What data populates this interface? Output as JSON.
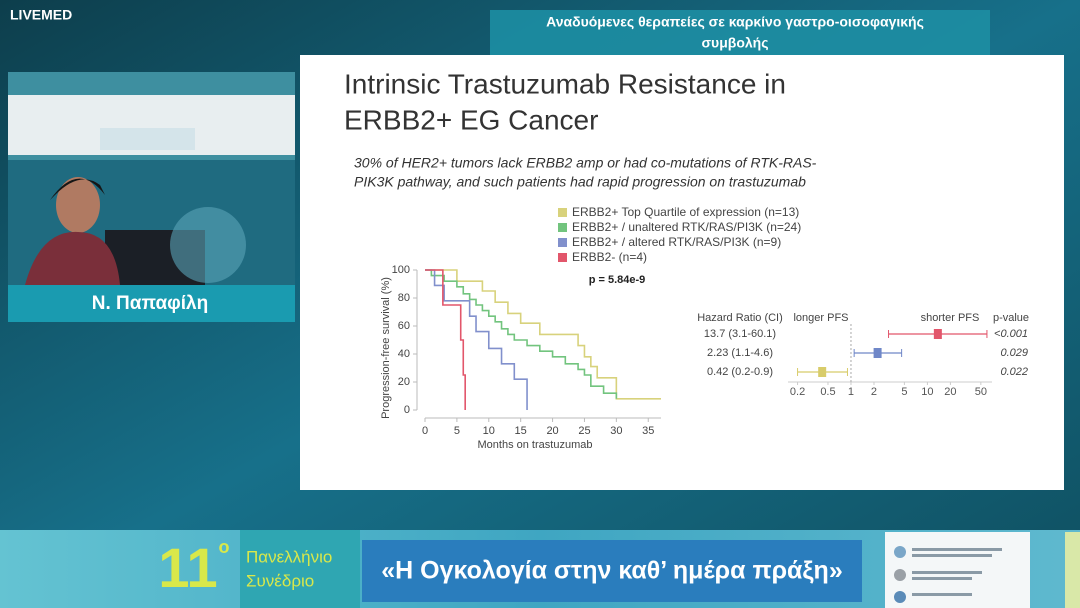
{
  "header": {
    "logo": "LIVEMED",
    "session_title_lines": [
      "Αναδυόμενες θεραπείες σε καρκίνο γαστρο-οισοφαγικής",
      "συμβολής"
    ]
  },
  "speaker": {
    "name": "Ν. Παπαφίλη"
  },
  "slide": {
    "title_lines": [
      "Intrinsic Trastuzumab Resistance in",
      "ERBB2+ EG Cancer"
    ],
    "subtitle_lines": [
      "30% of HER2+ tumors lack ERBB2 amp or had co-mutations of RTK-RAS-",
      "PIK3K pathway, and such patients had rapid progression on trastuzumab"
    ]
  },
  "chart_data": [
    {
      "type": "km",
      "annotation": "p = 5.84e-9",
      "y_label": "Progression-free survival (%)",
      "x_label": "Months on trastuzumab",
      "xlim": [
        0,
        37
      ],
      "ylim": [
        0,
        100
      ],
      "xticks": [
        0,
        5,
        10,
        15,
        20,
        25,
        30,
        35
      ],
      "yticks": [
        0,
        20,
        40,
        60,
        80,
        100
      ],
      "series": [
        {
          "name": "ERBB2+ Top Quartile of expression (n=13)",
          "color": "#d8d27c",
          "x": [
            0,
            5,
            9,
            11,
            13,
            15,
            18,
            24,
            25,
            26,
            27,
            30,
            37
          ],
          "values": [
            100,
            92,
            85,
            77,
            69,
            62,
            54,
            46,
            38,
            31,
            23,
            8,
            8
          ]
        },
        {
          "name": "ERBB2+ / unaltered RTK/RAS/PI3K (n=24)",
          "color": "#72c47e",
          "x": [
            0,
            1,
            3,
            5,
            6,
            7,
            8,
            9,
            10,
            11,
            12,
            13,
            14,
            16,
            18,
            20,
            22,
            24,
            25,
            26,
            28,
            30
          ],
          "values": [
            100,
            96,
            92,
            88,
            83,
            79,
            75,
            71,
            67,
            63,
            58,
            54,
            50,
            46,
            42,
            38,
            33,
            29,
            25,
            17,
            12,
            8
          ]
        },
        {
          "name": "ERBB2+ / altered RTK/RAS/PI3K (n=9)",
          "color": "#8190cc",
          "x": [
            0,
            1.5,
            3,
            7,
            8,
            10,
            12,
            14,
            16
          ],
          "values": [
            100,
            89,
            78,
            67,
            56,
            44,
            33,
            22,
            0
          ]
        },
        {
          "name": "ERBB2- (n=4)",
          "color": "#e2566b",
          "x": [
            0,
            2.8,
            5.6,
            6,
            6.3
          ],
          "values": [
            100,
            75,
            50,
            25,
            0
          ]
        }
      ]
    },
    {
      "type": "forest",
      "log": true,
      "headers": [
        "Hazard Ratio (CI)",
        "longer PFS",
        "shorter PFS",
        "p-value"
      ],
      "xlim": [
        0.15,
        70
      ],
      "xticks": [
        0.2,
        0.5,
        1,
        2,
        5,
        10,
        20,
        50
      ],
      "colors": [
        "#e2566b",
        "#6f87c8",
        "#d8cc6a"
      ],
      "hr": [
        13.7,
        2.23,
        0.42
      ],
      "ci_low": [
        3.1,
        1.1,
        0.2
      ],
      "ci_high": [
        60.1,
        4.6,
        0.9
      ],
      "value_labels": [
        "13.7 (3.1-60.1)",
        "2.23 (1.1-4.6)",
        "0.42 (0.2-0.9)"
      ],
      "p_values": [
        "<0.001",
        "0.029",
        "0.022"
      ]
    }
  ],
  "footer": {
    "edition": "11",
    "degree": "ο",
    "event_lines": [
      "Πανελλήνιο",
      "Συνέδριο"
    ],
    "motto": "«Η Ογκολογία στην καθ’ ημέρα πράξη»"
  }
}
